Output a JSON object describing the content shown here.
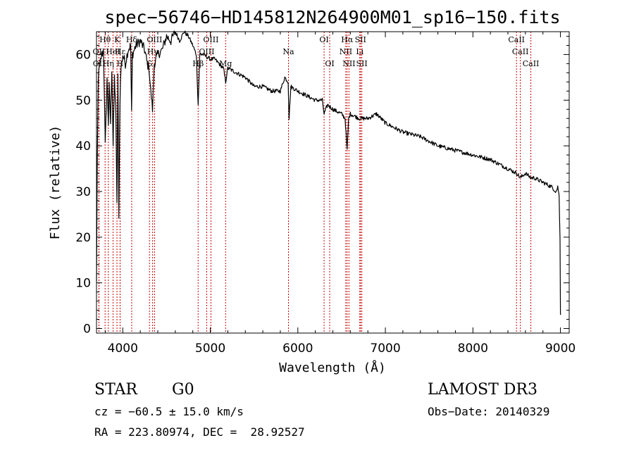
{
  "chart_data": {
    "type": "line",
    "title": "spec−56746−HD145812N264900M01_sp16−150.fits",
    "xlabel": "Wavelength (Å)",
    "ylabel": "Flux (relative)",
    "xlim": [
      3700,
      9100
    ],
    "ylim": [
      -1,
      65
    ],
    "xticks": [
      4000,
      5000,
      6000,
      7000,
      8000,
      9000
    ],
    "yticks": [
      0,
      10,
      20,
      30,
      40,
      50,
      60
    ],
    "series": [
      {
        "name": "spectrum",
        "x": [
          3700,
          3705,
          3710,
          3720,
          3740,
          3760,
          3780,
          3800,
          3820,
          3835,
          3845,
          3860,
          3875,
          3890,
          3905,
          3920,
          3933,
          3945,
          3955,
          3968,
          3980,
          4000,
          4030,
          4060,
          4090,
          4101,
          4110,
          4150,
          4200,
          4250,
          4280,
          4300,
          4320,
          4340,
          4360,
          4400,
          4450,
          4500,
          4550,
          4600,
          4650,
          4700,
          4750,
          4800,
          4840,
          4861,
          4880,
          4920,
          5000,
          5050,
          5100,
          5150,
          5175,
          5200,
          5300,
          5400,
          5500,
          5600,
          5700,
          5800,
          5850,
          5890,
          5900,
          5920,
          6000,
          6100,
          6200,
          6280,
          6300,
          6340,
          6400,
          6500,
          6540,
          6563,
          6580,
          6600,
          6700,
          6800,
          6900,
          7000,
          7200,
          7400,
          7600,
          7800,
          8000,
          8200,
          8400,
          8500,
          8542,
          8600,
          8662,
          8700,
          8800,
          8900,
          8950,
          8970,
          8985,
          8995,
          9000
        ],
        "values": [
          10,
          25,
          38,
          55,
          58,
          60,
          61,
          40,
          55,
          45,
          53,
          45,
          57,
          40,
          55,
          48,
          28,
          55,
          25,
          50,
          57,
          60,
          58,
          61,
          62,
          47,
          60,
          62,
          63,
          61,
          58,
          57,
          52,
          48,
          58,
          60,
          61,
          64,
          63,
          65,
          63,
          65,
          64,
          62,
          60,
          49,
          60,
          60,
          59,
          59,
          58,
          57,
          54,
          57,
          56,
          55,
          53,
          53,
          52,
          52,
          55,
          54,
          46,
          53,
          52,
          51,
          50,
          50,
          47,
          49,
          48,
          47,
          46,
          39,
          46,
          47,
          46,
          46,
          47,
          45,
          43,
          42,
          40,
          39,
          38,
          37,
          35,
          34,
          33,
          34,
          33,
          33,
          32,
          31,
          30,
          31,
          29,
          20,
          3
        ]
      }
    ],
    "line_markers": [
      {
        "label": "Hθ",
        "wavelength": 3798,
        "row": 0
      },
      {
        "label": "OII",
        "wavelength": 3727,
        "row": 1
      },
      {
        "label": "OII",
        "wavelength": 3729,
        "row": 2
      },
      {
        "label": "Hη",
        "wavelength": 3835,
        "row": 2
      },
      {
        "label": "HeI",
        "wavelength": 3889,
        "row": 1
      },
      {
        "label": "K",
        "wavelength": 3934,
        "row": 0
      },
      {
        "label": "H",
        "wavelength": 3969,
        "row": 2
      },
      {
        "label": "Hε",
        "wavelength": 3970,
        "row": 1
      },
      {
        "label": "Hδ",
        "wavelength": 4102,
        "row": 0
      },
      {
        "label": "G",
        "wavelength": 4305,
        "row": 2
      },
      {
        "label": "OIII",
        "wavelength": 4363,
        "row": 0
      },
      {
        "label": "Hγ",
        "wavelength": 4341,
        "row": 1
      },
      {
        "label": "Hβ",
        "wavelength": 4861,
        "row": 2
      },
      {
        "label": "OIII",
        "wavelength": 4959,
        "row": 1
      },
      {
        "label": "OIII",
        "wavelength": 5007,
        "row": 0
      },
      {
        "label": "Mg",
        "wavelength": 5175,
        "row": 2
      },
      {
        "label": "Na",
        "wavelength": 5893,
        "row": 1
      },
      {
        "label": "OI",
        "wavelength": 6300,
        "row": 0
      },
      {
        "label": "OI",
        "wavelength": 6364,
        "row": 2
      },
      {
        "label": "Hα",
        "wavelength": 6563,
        "row": 0
      },
      {
        "label": "NII",
        "wavelength": 6548,
        "row": 1
      },
      {
        "label": "NII",
        "wavelength": 6584,
        "row": 2
      },
      {
        "label": "SII",
        "wavelength": 6716,
        "row": 0
      },
      {
        "label": "Li",
        "wavelength": 6708,
        "row": 1
      },
      {
        "label": "SII",
        "wavelength": 6731,
        "row": 2
      },
      {
        "label": "CaII",
        "wavelength": 8498,
        "row": 0
      },
      {
        "label": "CaII",
        "wavelength": 8542,
        "row": 1
      },
      {
        "label": "CaII",
        "wavelength": 8662,
        "row": 2
      }
    ],
    "colors": {
      "spectrum": "#000000",
      "marker": "#cc0000",
      "axes": "#000000"
    }
  },
  "info": {
    "class": "STAR",
    "subclass": "G0",
    "survey": "LAMOST DR3",
    "redshift": "cz = −60.5 ± 15.0 km/s",
    "obs_date": "Obs−Date: 20140329",
    "coords": "RA = 223.80974, DEC =  28.92527"
  }
}
